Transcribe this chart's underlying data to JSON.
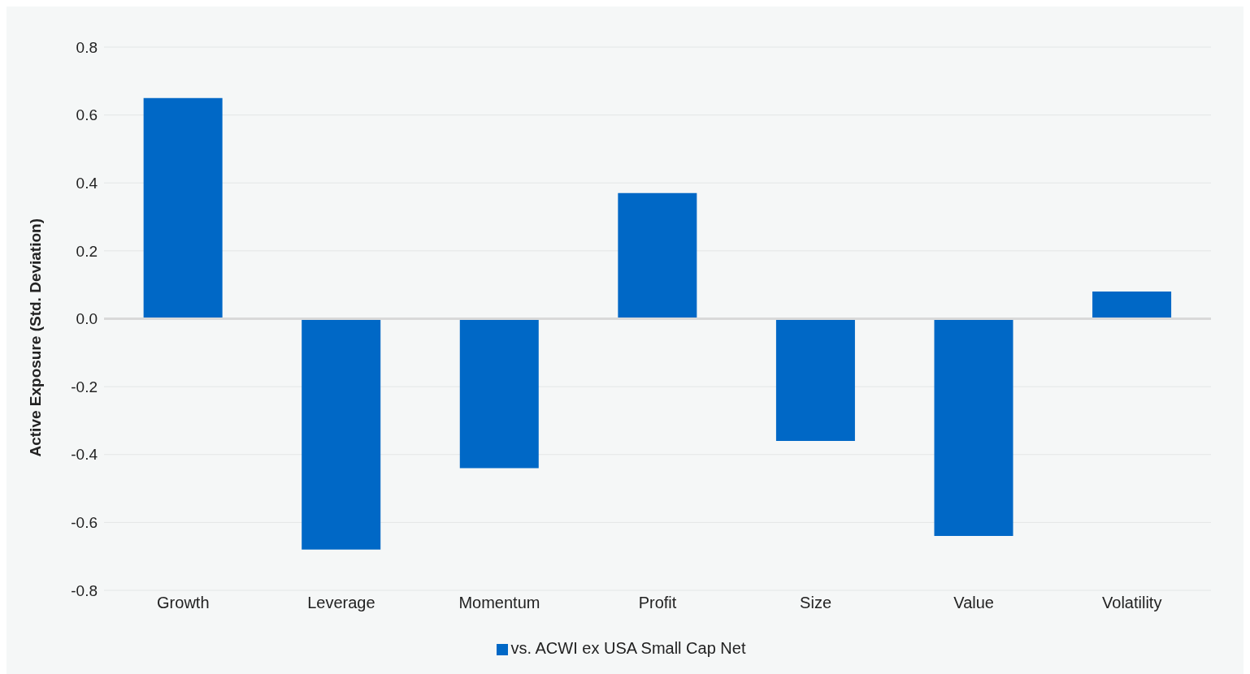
{
  "chart_data": {
    "type": "bar",
    "ylabel": "Active Exposure (Std. Deviation)",
    "categories": [
      "Growth",
      "Leverage",
      "Momentum",
      "Profit",
      "Size",
      "Value",
      "Volatility"
    ],
    "series": [
      {
        "name": "vs. ACWI ex USA Small Cap Net",
        "color": "#0068c6",
        "values": [
          0.65,
          -0.68,
          -0.44,
          0.37,
          -0.36,
          -0.64,
          0.08
        ]
      }
    ],
    "ylim": [
      -0.8,
      0.8
    ],
    "yticks": [
      {
        "value": -0.8,
        "label": "-0.8"
      },
      {
        "value": -0.6,
        "label": "-0.6"
      },
      {
        "value": -0.4,
        "label": "-0.4"
      },
      {
        "value": -0.2,
        "label": "-0.2"
      },
      {
        "value": 0,
        "label": "0.0"
      },
      {
        "value": 0.2,
        "label": "0.2"
      },
      {
        "value": 0.4,
        "label": "0.4"
      },
      {
        "value": 0.6,
        "label": "0.6"
      },
      {
        "value": 0.8,
        "label": "0.8"
      }
    ],
    "ref_lines": [
      {
        "axis": "y",
        "value": 0,
        "color": "#d9d9d9"
      }
    ],
    "grid": "y",
    "legend": "bottom"
  }
}
